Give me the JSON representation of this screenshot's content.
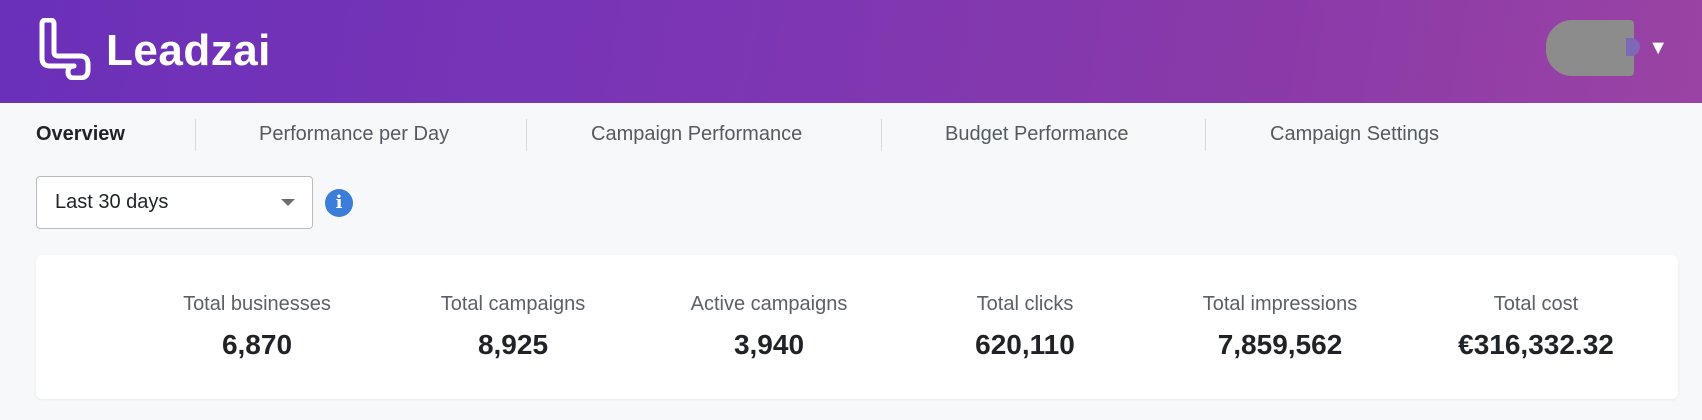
{
  "header": {
    "brand": "Leadzai",
    "gradient_start": "#6a30b9",
    "gradient_end": "#9a43a4",
    "user_menu_caret": "▼",
    "logo_icon": "leadzai-logo-mark"
  },
  "tabs": [
    {
      "label": "Overview",
      "active": true
    },
    {
      "label": "Performance per Day",
      "active": false
    },
    {
      "label": "Campaign Performance",
      "active": false
    },
    {
      "label": "Budget Performance",
      "active": false
    },
    {
      "label": "Campaign Settings",
      "active": false
    }
  ],
  "filter": {
    "date_range": "Last 30 days",
    "info_glyph": "i",
    "info_icon": "info-icon",
    "info_color": "#3b7dd8"
  },
  "stats": [
    {
      "label": "Total businesses",
      "value": "6,870"
    },
    {
      "label": "Total campaigns",
      "value": "8,925"
    },
    {
      "label": "Active campaigns",
      "value": "3,940"
    },
    {
      "label": "Total clicks",
      "value": "620,110"
    },
    {
      "label": "Total impressions",
      "value": "7,859,562"
    },
    {
      "label": "Total cost",
      "value": "€316,332.32"
    }
  ]
}
